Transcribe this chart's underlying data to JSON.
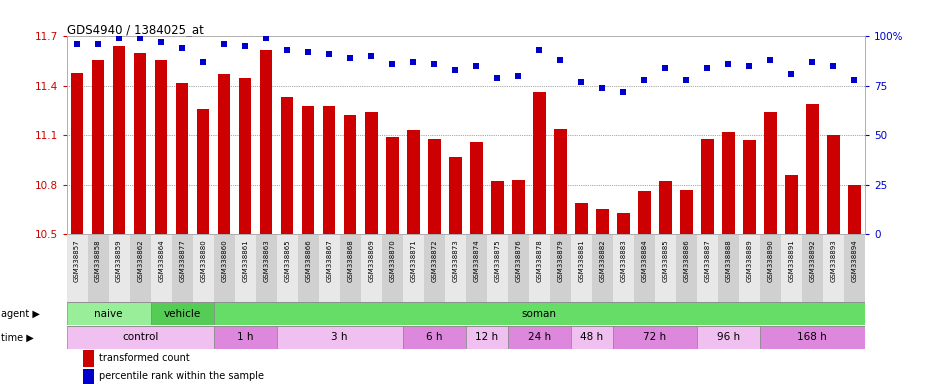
{
  "title": "GDS4940 / 1384025_at",
  "samples": [
    "GSM338857",
    "GSM338858",
    "GSM338859",
    "GSM338862",
    "GSM338864",
    "GSM338877",
    "GSM338880",
    "GSM338860",
    "GSM338861",
    "GSM338863",
    "GSM338865",
    "GSM338866",
    "GSM338867",
    "GSM338868",
    "GSM338869",
    "GSM338870",
    "GSM338871",
    "GSM338872",
    "GSM338873",
    "GSM338874",
    "GSM338875",
    "GSM338876",
    "GSM338878",
    "GSM338879",
    "GSM338881",
    "GSM338882",
    "GSM338883",
    "GSM338884",
    "GSM338885",
    "GSM338886",
    "GSM338887",
    "GSM338888",
    "GSM338889",
    "GSM338890",
    "GSM338891",
    "GSM338892",
    "GSM338893",
    "GSM338894"
  ],
  "bar_values": [
    11.48,
    11.56,
    11.64,
    11.6,
    11.56,
    11.42,
    11.26,
    11.47,
    11.45,
    11.62,
    11.33,
    11.28,
    11.28,
    11.22,
    11.24,
    11.09,
    11.13,
    11.08,
    10.97,
    11.06,
    10.82,
    10.83,
    11.36,
    11.14,
    10.69,
    10.65,
    10.63,
    10.76,
    10.82,
    10.77,
    11.08,
    11.12,
    11.07,
    11.24,
    10.86,
    11.29,
    11.1,
    10.8
  ],
  "percentile_values": [
    96,
    96,
    99,
    99,
    97,
    94,
    87,
    96,
    95,
    99,
    93,
    92,
    91,
    89,
    90,
    86,
    87,
    86,
    83,
    85,
    79,
    80,
    93,
    88,
    77,
    74,
    72,
    78,
    84,
    78,
    84,
    86,
    85,
    88,
    81,
    87,
    85,
    78
  ],
  "bar_color": "#cc0000",
  "percentile_color": "#0000cc",
  "ylim_left": [
    10.5,
    11.7
  ],
  "ylim_right": [
    0,
    100
  ],
  "yticks_left": [
    10.5,
    10.8,
    11.1,
    11.4,
    11.7
  ],
  "yticks_right": [
    0,
    25,
    50,
    75,
    100
  ],
  "agent_groups": [
    {
      "label": "naive",
      "start": 0,
      "end": 4,
      "color": "#99ee99"
    },
    {
      "label": "vehicle",
      "start": 4,
      "end": 7,
      "color": "#55cc55"
    },
    {
      "label": "soman",
      "start": 7,
      "end": 38,
      "color": "#66dd66"
    }
  ],
  "time_groups": [
    {
      "label": "control",
      "start": 0,
      "end": 7,
      "color": "#f0c0f0"
    },
    {
      "label": "1 h",
      "start": 7,
      "end": 10,
      "color": "#dd88dd"
    },
    {
      "label": "3 h",
      "start": 10,
      "end": 16,
      "color": "#f0c0f0"
    },
    {
      "label": "6 h",
      "start": 16,
      "end": 19,
      "color": "#dd88dd"
    },
    {
      "label": "12 h",
      "start": 19,
      "end": 21,
      "color": "#f0c0f0"
    },
    {
      "label": "24 h",
      "start": 21,
      "end": 24,
      "color": "#dd88dd"
    },
    {
      "label": "48 h",
      "start": 24,
      "end": 26,
      "color": "#f0c0f0"
    },
    {
      "label": "72 h",
      "start": 26,
      "end": 30,
      "color": "#dd88dd"
    },
    {
      "label": "96 h",
      "start": 30,
      "end": 33,
      "color": "#f0c0f0"
    },
    {
      "label": "168 h",
      "start": 33,
      "end": 38,
      "color": "#dd88dd"
    }
  ],
  "background_color": "#ffffff",
  "grid_color": "#555555",
  "tick_bg_even": "#e8e8e8",
  "tick_bg_odd": "#d0d0d0"
}
